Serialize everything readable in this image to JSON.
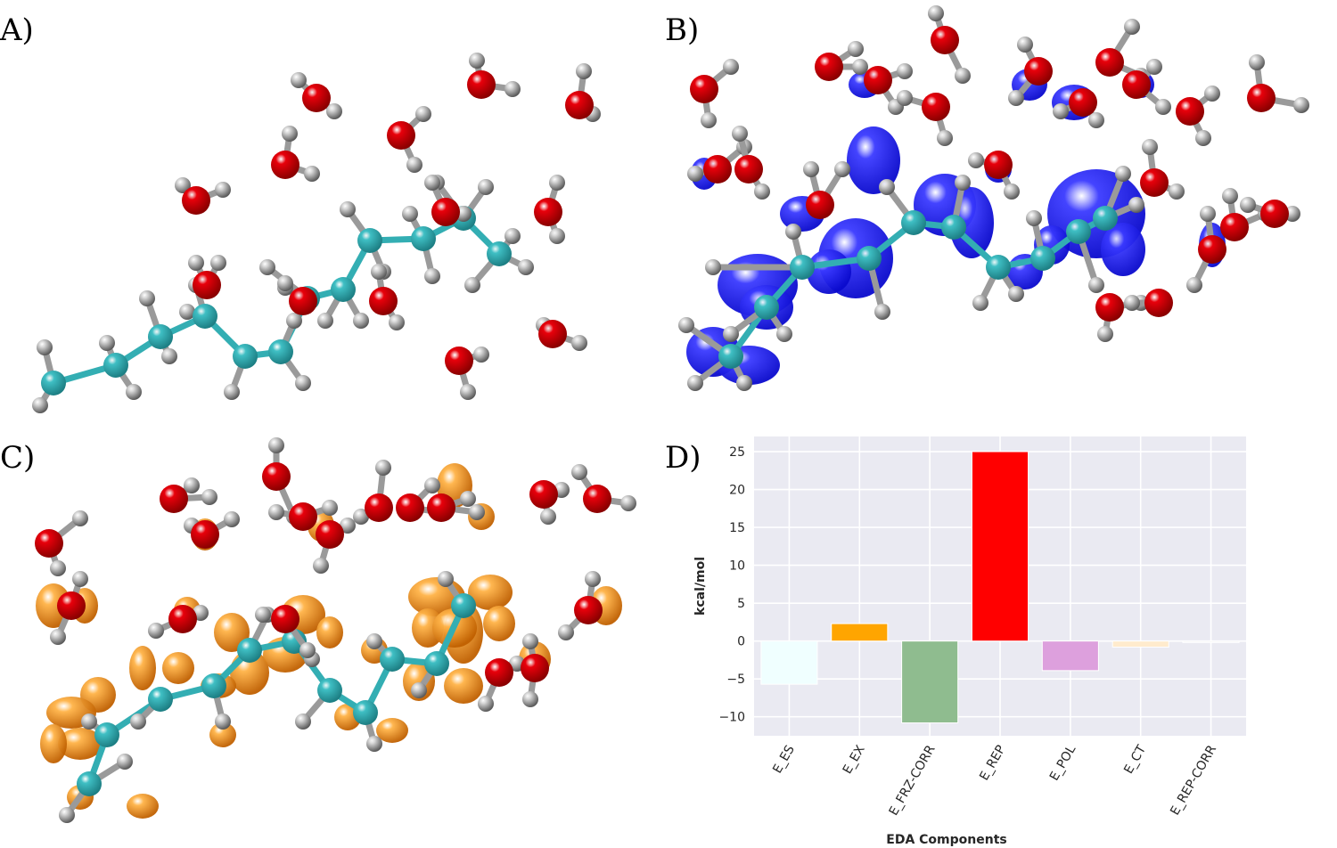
{
  "panel_labels": {
    "a": "A)",
    "b": "B)",
    "c": "C)",
    "d": "D)"
  },
  "colors": {
    "carbon": "#3fbfc4",
    "hydrogen": "#9a9a9a",
    "oxygen": "#e8000b",
    "isosurface_b": "#0a0acd",
    "isosurface_c": "#f08a0a",
    "plot_background": "#eaeaf2",
    "grid": "#ffffff"
  },
  "chart_data": {
    "type": "bar",
    "title": "",
    "xlabel": "EDA Components",
    "ylabel": "kcal/mol",
    "categories": [
      "E_ES",
      "E_EX",
      "E_FRZ-CORR",
      "E_REP",
      "E_POL",
      "E_CT",
      "E_REP-CORR"
    ],
    "values": [
      -5.7,
      2.3,
      -10.8,
      25.0,
      -3.9,
      -0.8,
      -0.2
    ],
    "bar_colors": [
      "#f0ffff",
      "#ffa500",
      "#8fbc8f",
      "#ff0000",
      "#dda0dd",
      "#ffebcd",
      "#f5f5f5"
    ],
    "ylim": [
      -12.5,
      27
    ],
    "yticks": [
      -10,
      -5,
      0,
      5,
      10,
      15,
      20,
      25
    ],
    "ytick_labels": [
      "−10",
      "−5",
      "0",
      "5",
      "10",
      "15",
      "20",
      "25"
    ],
    "grid": true
  }
}
